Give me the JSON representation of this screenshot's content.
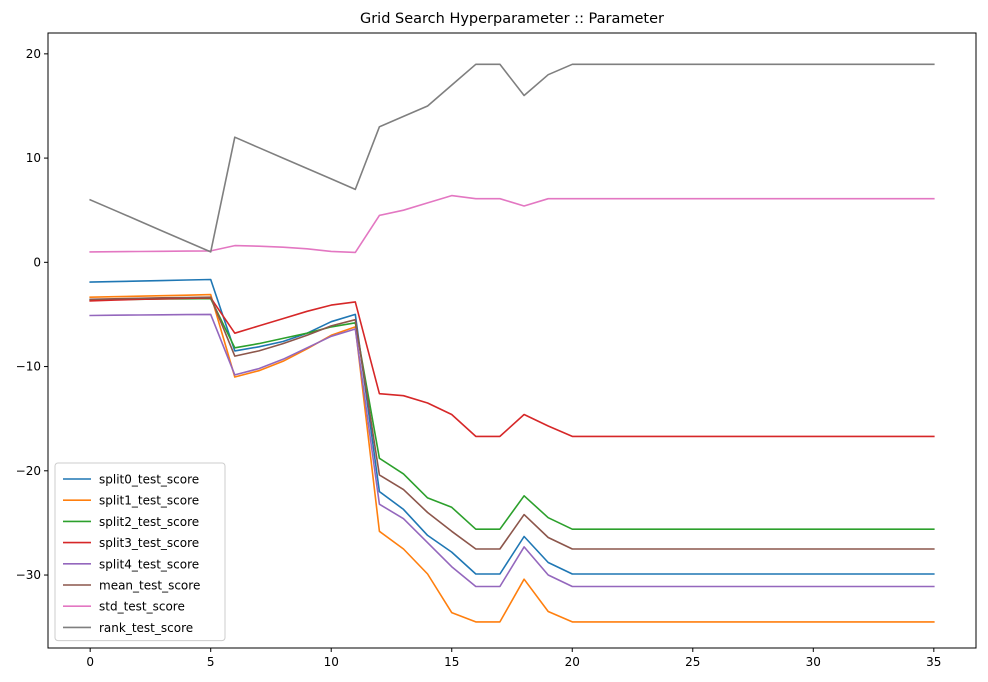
{
  "chart_data": {
    "type": "line",
    "title": "Grid Search Hyperparameter :: Parameter",
    "xlabel": "",
    "ylabel": "",
    "xlim": [
      -1.75,
      36.75
    ],
    "ylim": [
      -37,
      22
    ],
    "xticks": [
      0,
      5,
      10,
      15,
      20,
      25,
      30,
      35
    ],
    "yticks": [
      -30,
      -20,
      -10,
      0,
      10,
      20
    ],
    "ytick_labels": [
      "−30",
      "−20",
      "−10",
      "0",
      "10",
      "20"
    ],
    "grid": false,
    "legend_position": "lower-left",
    "x": [
      0,
      1,
      2,
      3,
      4,
      5,
      6,
      7,
      8,
      9,
      10,
      11,
      12,
      13,
      14,
      15,
      16,
      17,
      18,
      19,
      20,
      21,
      22,
      23,
      24,
      25,
      26,
      27,
      28,
      29,
      30,
      31,
      32,
      33,
      34,
      35
    ],
    "series": [
      {
        "name": "split0_test_score",
        "color": "#1f77b4",
        "values": [
          -1.9,
          -1.85,
          -1.8,
          -1.75,
          -1.7,
          -1.65,
          -8.5,
          -8.1,
          -7.6,
          -6.8,
          -5.7,
          -5.0,
          -22.0,
          -23.7,
          -26.2,
          -27.8,
          -29.9,
          -29.9,
          -26.3,
          -28.8,
          -29.9,
          -29.9,
          -29.9,
          -29.9,
          -29.9,
          -29.9,
          -29.9,
          -29.9,
          -29.9,
          -29.9,
          -29.9,
          -29.9,
          -29.9,
          -29.9,
          -29.9,
          -29.9
        ]
      },
      {
        "name": "split1_test_score",
        "color": "#ff7f0e",
        "values": [
          -3.35,
          -3.3,
          -3.25,
          -3.2,
          -3.15,
          -3.1,
          -11.0,
          -10.4,
          -9.5,
          -8.3,
          -7.0,
          -6.2,
          -25.8,
          -27.5,
          -29.9,
          -33.6,
          -34.5,
          -34.5,
          -30.4,
          -33.5,
          -34.5,
          -34.5,
          -34.5,
          -34.5,
          -34.5,
          -34.5,
          -34.5,
          -34.5,
          -34.5,
          -34.5,
          -34.5,
          -34.5,
          -34.5,
          -34.5,
          -34.5,
          -34.5
        ]
      },
      {
        "name": "split2_test_score",
        "color": "#2ca02c",
        "values": [
          -3.6,
          -3.57,
          -3.55,
          -3.52,
          -3.5,
          -3.48,
          -8.2,
          -7.8,
          -7.3,
          -6.8,
          -6.2,
          -5.8,
          -18.8,
          -20.3,
          -22.6,
          -23.5,
          -25.6,
          -25.6,
          -22.4,
          -24.5,
          -25.6,
          -25.6,
          -25.6,
          -25.6,
          -25.6,
          -25.6,
          -25.6,
          -25.6,
          -25.6,
          -25.6,
          -25.6,
          -25.6,
          -25.6,
          -25.6,
          -25.6,
          -25.6
        ]
      },
      {
        "name": "split3_test_score",
        "color": "#d62728",
        "values": [
          -3.7,
          -3.62,
          -3.55,
          -3.5,
          -3.45,
          -3.4,
          -6.8,
          -6.1,
          -5.4,
          -4.7,
          -4.1,
          -3.8,
          -12.6,
          -12.8,
          -13.5,
          -14.6,
          -16.7,
          -16.7,
          -14.6,
          -15.7,
          -16.7,
          -16.7,
          -16.7,
          -16.7,
          -16.7,
          -16.7,
          -16.7,
          -16.7,
          -16.7,
          -16.7,
          -16.7,
          -16.7,
          -16.7,
          -16.7,
          -16.7,
          -16.7
        ]
      },
      {
        "name": "split4_test_score",
        "color": "#9467bd",
        "values": [
          -5.1,
          -5.07,
          -5.05,
          -5.03,
          -5.02,
          -5.0,
          -10.8,
          -10.2,
          -9.3,
          -8.2,
          -7.1,
          -6.4,
          -23.2,
          -24.6,
          -26.9,
          -29.2,
          -31.1,
          -31.1,
          -27.3,
          -30.0,
          -31.1,
          -31.1,
          -31.1,
          -31.1,
          -31.1,
          -31.1,
          -31.1,
          -31.1,
          -31.1,
          -31.1,
          -31.1,
          -31.1,
          -31.1,
          -31.1,
          -31.1,
          -31.1
        ]
      },
      {
        "name": "mean_test_score",
        "color": "#8c564b",
        "values": [
          -3.55,
          -3.5,
          -3.45,
          -3.4,
          -3.38,
          -3.35,
          -9.0,
          -8.5,
          -7.8,
          -7.0,
          -6.1,
          -5.5,
          -20.4,
          -21.8,
          -24.0,
          -25.8,
          -27.5,
          -27.5,
          -24.2,
          -26.4,
          -27.5,
          -27.5,
          -27.5,
          -27.5,
          -27.5,
          -27.5,
          -27.5,
          -27.5,
          -27.5,
          -27.5,
          -27.5,
          -27.5,
          -27.5,
          -27.5,
          -27.5,
          -27.5
        ]
      },
      {
        "name": "std_test_score",
        "color": "#e377c2",
        "values": [
          1.0,
          1.02,
          1.04,
          1.06,
          1.08,
          1.1,
          1.6,
          1.55,
          1.45,
          1.3,
          1.05,
          0.95,
          4.5,
          5.0,
          5.7,
          6.4,
          6.1,
          6.1,
          5.4,
          6.1,
          6.1,
          6.1,
          6.1,
          6.1,
          6.1,
          6.1,
          6.1,
          6.1,
          6.1,
          6.1,
          6.1,
          6.1,
          6.1,
          6.1,
          6.1,
          6.1
        ]
      },
      {
        "name": "rank_test_score",
        "color": "#7f7f7f",
        "values": [
          6,
          5,
          4,
          3,
          2,
          1,
          12,
          11,
          10,
          9,
          8,
          7,
          13,
          14,
          15,
          17,
          19,
          19,
          16,
          18,
          19,
          19,
          19,
          19,
          19,
          19,
          19,
          19,
          19,
          19,
          19,
          19,
          19,
          19,
          19,
          19
        ]
      }
    ]
  }
}
